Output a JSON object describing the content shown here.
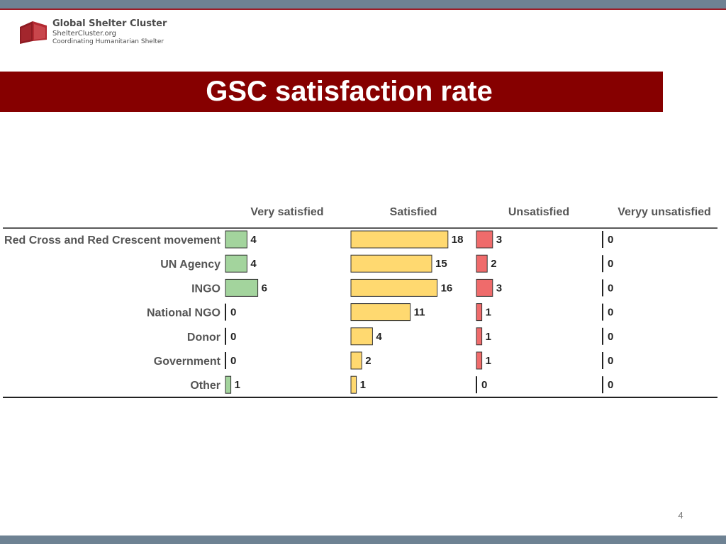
{
  "logo": {
    "title": "Global Shelter Cluster",
    "url": "ShelterCluster.org",
    "tagline": "Coordinating Humanitarian Shelter"
  },
  "slide": {
    "title": "GSC satisfaction rate",
    "page_number": "4"
  },
  "colors": {
    "header_bar": "#6e8293",
    "title_band": "#860000",
    "very_satisfied": "#a3d49d",
    "satisfied": "#ffd970",
    "unsatisfied": "#ef6b6b",
    "very_unsatisfied": "#7d7d7d"
  },
  "chart_data": {
    "type": "bar",
    "orientation": "horizontal",
    "title": "",
    "categories": [
      "Red Cross and Red Crescent movement",
      "UN Agency",
      "INGO",
      "National NGO",
      "Donor",
      "Government",
      "Other"
    ],
    "series": [
      {
        "name": "Very satisfied",
        "values": [
          4,
          4,
          6,
          0,
          0,
          0,
          1
        ],
        "color": "#a3d49d"
      },
      {
        "name": "Satisfied",
        "values": [
          18,
          15,
          16,
          11,
          4,
          2,
          1
        ],
        "color": "#ffd970"
      },
      {
        "name": "Unsatisfied",
        "values": [
          3,
          2,
          3,
          1,
          1,
          1,
          0
        ],
        "color": "#ef6b6b"
      },
      {
        "name": "Veryy unsatisfied",
        "values": [
          0,
          0,
          0,
          0,
          0,
          0,
          0
        ],
        "color": "#7d7d7d"
      }
    ],
    "xlim": [
      0,
      18
    ],
    "grid": false,
    "layout": "small multiples, one panel per series"
  }
}
